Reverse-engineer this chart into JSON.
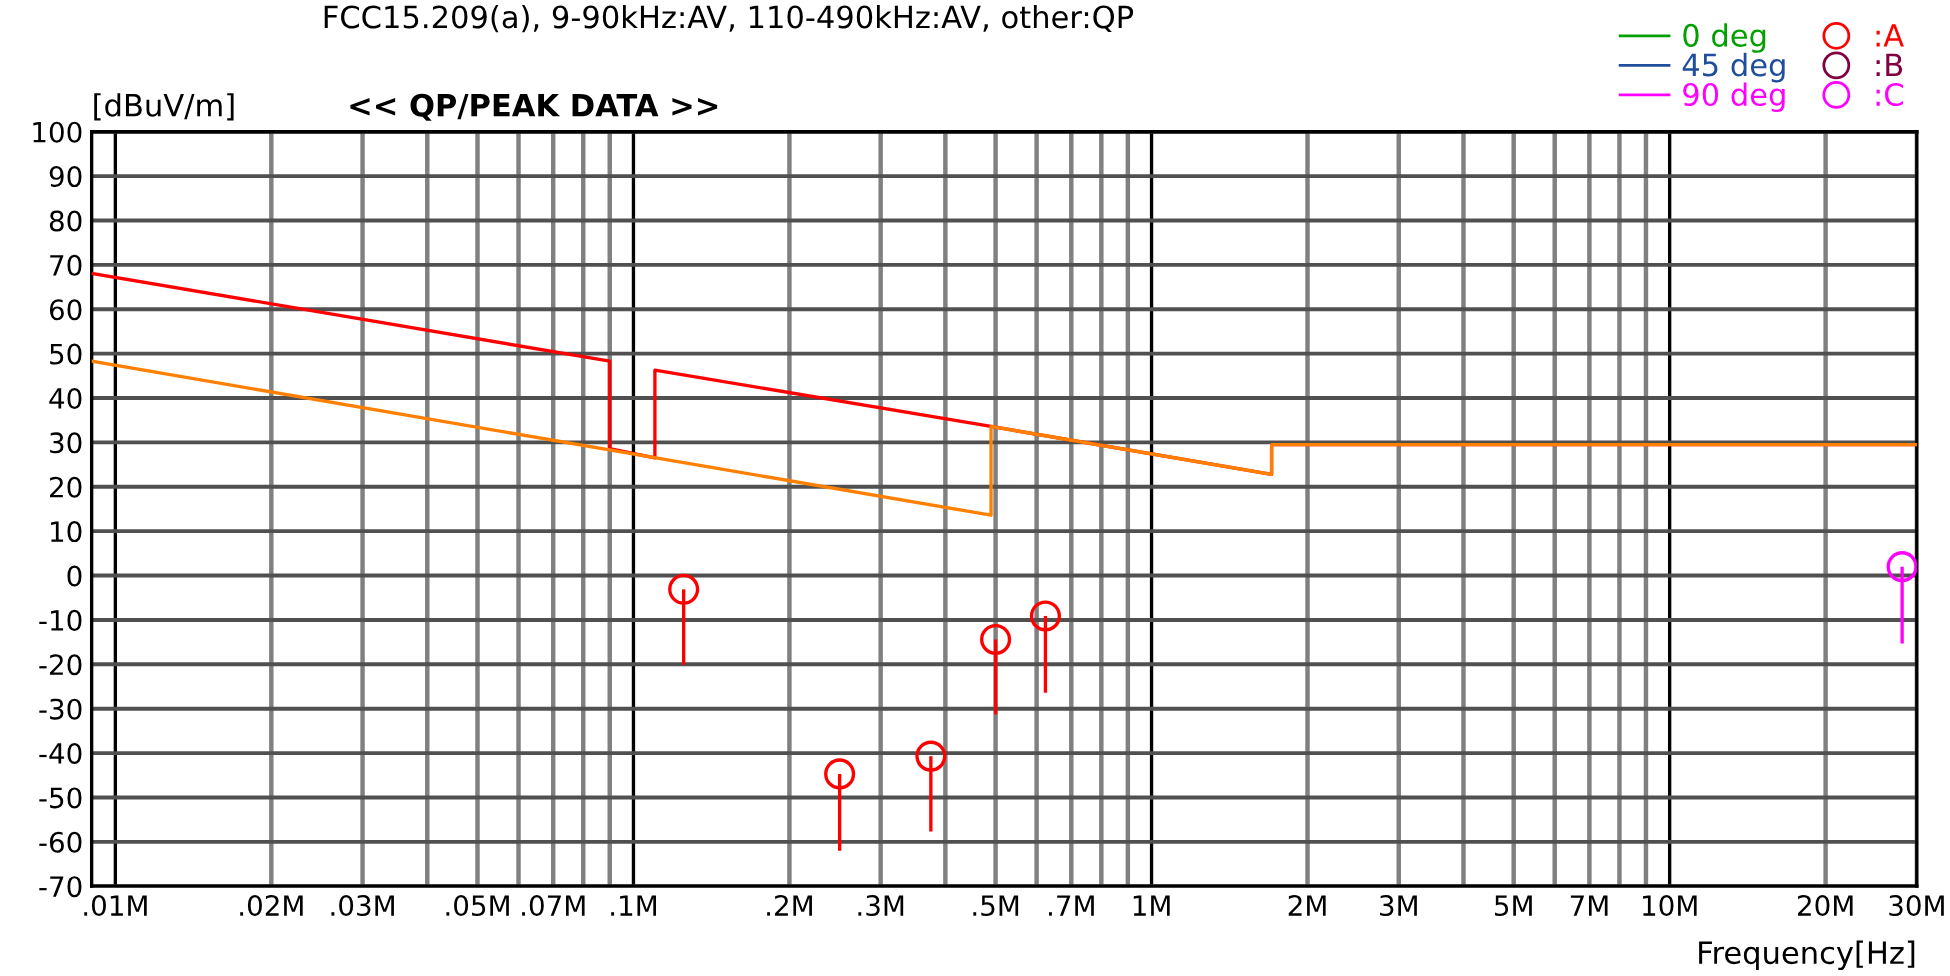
{
  "chart_data": {
    "type": "scatter",
    "title": "<< QP/PEAK DATA >>",
    "ylabel": "[dBuV/m]",
    "xlabel": "Frequency[Hz]",
    "annotations": [
      "FCC15.209(a), 9-90kHz:AV, 110-490kHz:AV, other:QP"
    ],
    "log": "x",
    "xlim": [
      0.009,
      30
    ],
    "xticks": [
      {
        "value": 0.01,
        "label": ".01M"
      },
      {
        "value": 0.02,
        "label": ".02M"
      },
      {
        "value": 0.03,
        "label": ".03M"
      },
      {
        "value": 0.04,
        "label": null
      },
      {
        "value": 0.05,
        "label": ".05M"
      },
      {
        "value": 0.06,
        "label": null
      },
      {
        "value": 0.07,
        "label": ".07M"
      },
      {
        "value": 0.08,
        "label": null
      },
      {
        "value": 0.09,
        "label": null
      },
      {
        "value": 0.1,
        "label": ".1M"
      },
      {
        "value": 0.2,
        "label": ".2M"
      },
      {
        "value": 0.3,
        "label": ".3M"
      },
      {
        "value": 0.4,
        "label": null
      },
      {
        "value": 0.5,
        "label": ".5M"
      },
      {
        "value": 0.6,
        "label": null
      },
      {
        "value": 0.7,
        "label": ".7M"
      },
      {
        "value": 0.8,
        "label": null
      },
      {
        "value": 0.9,
        "label": null
      },
      {
        "value": 1,
        "label": "1M"
      },
      {
        "value": 2,
        "label": "2M"
      },
      {
        "value": 3,
        "label": "3M"
      },
      {
        "value": 4,
        "label": null
      },
      {
        "value": 5,
        "label": "5M"
      },
      {
        "value": 6,
        "label": null
      },
      {
        "value": 7,
        "label": "7M"
      },
      {
        "value": 8,
        "label": null
      },
      {
        "value": 9,
        "label": null
      },
      {
        "value": 10,
        "label": "10M"
      },
      {
        "value": 20,
        "label": "20M"
      },
      {
        "value": 30,
        "label": "30M"
      }
    ],
    "ylim": [
      -70,
      100
    ],
    "yticks": [
      -70,
      -60,
      -50,
      -40,
      -30,
      -20,
      -10,
      0,
      10,
      20,
      30,
      40,
      50,
      60,
      70,
      80,
      90,
      100
    ],
    "grid": true,
    "legend": "top right",
    "series": [
      {
        "type": "line",
        "color": "#ff0000",
        "x": [
          0.009,
          0.09,
          0.09,
          0.11,
          0.11,
          0.49,
          1.705,
          1.705,
          30
        ],
        "values": [
          68.1,
          48.3,
          28.6,
          26.5,
          46.3,
          33.6,
          22.8,
          29.5,
          29.5
        ]
      },
      {
        "type": "line",
        "color": "#ff8000",
        "x": [
          0.009,
          0.49,
          0.49,
          1.705,
          1.705,
          30
        ],
        "values": [
          48.3,
          13.6,
          33.6,
          22.8,
          29.5,
          29.5
        ]
      },
      {
        "type": "line",
        "name": "0 deg",
        "color": "#00a000"
      },
      {
        "type": "line",
        "name": "45 deg",
        "color": "#1f4e9c"
      },
      {
        "type": "line",
        "name": "90 deg",
        "color": "#ff00ff"
      },
      {
        "name": ":A",
        "color": "#ff0000",
        "marker": "circle",
        "x": [
          0.125,
          0.25,
          0.375,
          0.5,
          0.624
        ],
        "values": [
          -3.1,
          -44.7,
          -40.7,
          -14.4,
          -9.1
        ],
        "errors": [
          [
            -20.1,
            -3.1
          ],
          [
            -62.0,
            -44.7
          ],
          [
            -57.7,
            -40.7
          ],
          [
            -31.3,
            -14.4
          ],
          [
            -26.4,
            -9.1
          ]
        ]
      },
      {
        "name": ":B",
        "color": "#800040",
        "marker": "circle"
      },
      {
        "name": ":C",
        "color": "#ff00ff",
        "marker": "circle",
        "x": [
          28.1
        ],
        "values": [
          2.0
        ],
        "errors": [
          [
            -15.3,
            2.0
          ]
        ]
      }
    ]
  }
}
